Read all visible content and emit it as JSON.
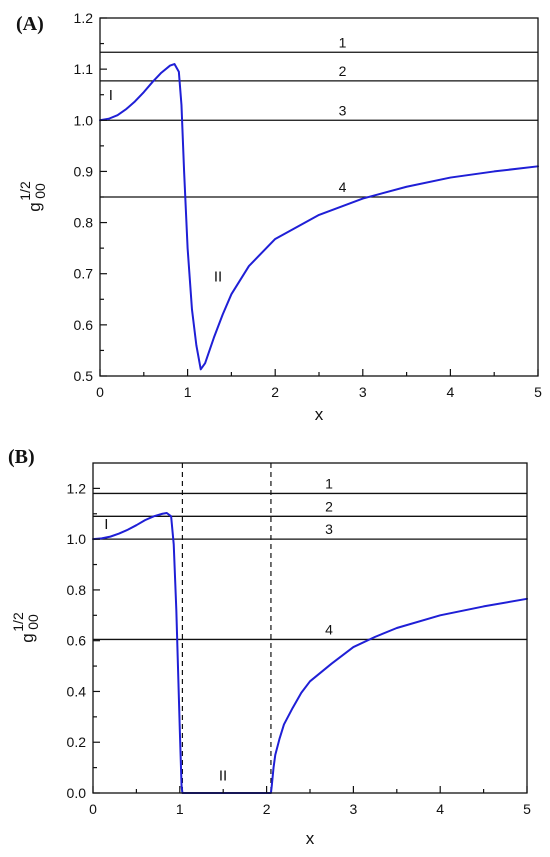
{
  "chart_data": [
    {
      "panel": "(A)",
      "type": "line",
      "xlabel": "x",
      "ylabel_main": "g",
      "ylabel_sub": "00",
      "ylabel_sup": "1/2",
      "xlim": [
        0,
        5
      ],
      "ylim": [
        0.5,
        1.2
      ],
      "x_ticks": [
        0,
        1,
        2,
        3,
        4,
        5
      ],
      "x_tick_labels": [
        "0",
        "1",
        "2",
        "3",
        "4",
        "5"
      ],
      "y_ticks": [
        0.5,
        0.6,
        0.7,
        0.8,
        0.9,
        1.0,
        1.1,
        1.2
      ],
      "y_tick_labels": [
        "0.5",
        "0.6",
        "0.7",
        "0.8",
        "0.9",
        "1.0",
        "1.1",
        "1.2"
      ],
      "x_minor_step": 0.5,
      "y_minor_step": 0.05,
      "grid": false,
      "curve_color": "#1f1fd6",
      "curve": {
        "x": [
          0,
          0.1,
          0.2,
          0.3,
          0.4,
          0.5,
          0.6,
          0.7,
          0.8,
          0.85,
          0.9,
          0.93,
          0.96,
          1.0,
          1.05,
          1.1,
          1.15,
          1.2,
          1.3,
          1.4,
          1.5,
          1.7,
          2.0,
          2.5,
          3.0,
          3.5,
          4.0,
          4.5,
          5.0
        ],
        "y": [
          1.0,
          1.003,
          1.01,
          1.022,
          1.037,
          1.055,
          1.075,
          1.093,
          1.107,
          1.11,
          1.095,
          1.03,
          0.9,
          0.75,
          0.63,
          0.56,
          0.513,
          0.525,
          0.575,
          0.62,
          0.66,
          0.715,
          0.768,
          0.815,
          0.847,
          0.87,
          0.888,
          0.9,
          0.91
        ]
      },
      "horizontal_lines": [
        {
          "label": "1",
          "y": 1.133
        },
        {
          "label": "2",
          "y": 1.077
        },
        {
          "label": "3",
          "y": 1.0
        },
        {
          "label": "4",
          "y": 0.85
        }
      ],
      "line_label_x": 2.7,
      "region_labels": [
        {
          "text": "I",
          "x": 0.1,
          "y": 1.04
        },
        {
          "text": "II",
          "x": 1.3,
          "y": 0.685
        }
      ]
    },
    {
      "panel": "(B)",
      "type": "line",
      "xlabel": "x",
      "ylabel_main": "g",
      "ylabel_sub": "00",
      "ylabel_sup": "1/2",
      "xlim": [
        0,
        5
      ],
      "ylim": [
        0,
        1.3
      ],
      "x_ticks": [
        0,
        1,
        2,
        3,
        4,
        5
      ],
      "x_tick_labels": [
        "0",
        "1",
        "2",
        "3",
        "4",
        "5"
      ],
      "y_ticks": [
        0.0,
        0.2,
        0.4,
        0.6,
        0.8,
        1.0,
        1.2
      ],
      "y_tick_labels": [
        "0.0",
        "0.2",
        "0.4",
        "0.6",
        "0.8",
        "1.0",
        "1.2"
      ],
      "x_minor_step": 0.5,
      "y_minor_step": 0.1,
      "grid": false,
      "curve_color": "#1f1fd6",
      "curve": {
        "x": [
          0,
          0.1,
          0.2,
          0.3,
          0.4,
          0.5,
          0.6,
          0.7,
          0.8,
          0.85,
          0.9,
          0.93,
          0.96,
          1.0,
          1.02,
          1.03,
          2.05,
          2.06,
          2.08,
          2.1,
          2.15,
          2.2,
          2.3,
          2.4,
          2.5,
          2.75,
          3.0,
          3.25,
          3.5,
          4.0,
          4.5,
          5.0
        ],
        "y": [
          1.0,
          1.003,
          1.01,
          1.022,
          1.037,
          1.055,
          1.075,
          1.09,
          1.1,
          1.103,
          1.09,
          0.98,
          0.72,
          0.25,
          0.03,
          0.0,
          0.0,
          0.03,
          0.1,
          0.15,
          0.215,
          0.27,
          0.335,
          0.395,
          0.44,
          0.51,
          0.575,
          0.615,
          0.65,
          0.7,
          0.735,
          0.765
        ]
      },
      "horizontal_lines": [
        {
          "label": "1",
          "y": 1.18
        },
        {
          "label": "2",
          "y": 1.09
        },
        {
          "label": "3",
          "y": 1.0
        },
        {
          "label": "4",
          "y": 0.605
        }
      ],
      "line_label_x": 2.65,
      "vertical_dashed_lines": [
        1.03,
        2.05
      ],
      "region_labels": [
        {
          "text": "I",
          "x": 0.13,
          "y": 1.04
        },
        {
          "text": "II",
          "x": 1.45,
          "y": 0.05
        }
      ]
    }
  ]
}
